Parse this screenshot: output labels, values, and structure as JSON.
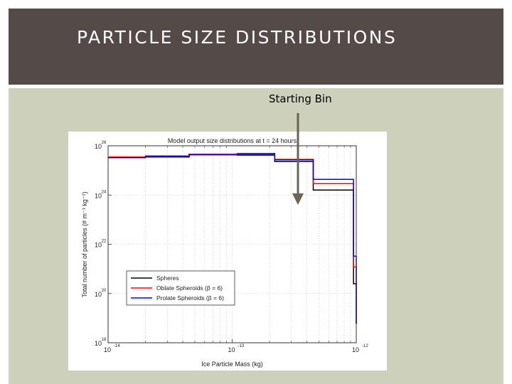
{
  "slide": {
    "title": "PARTICLE SIZE DISTRIBUTIONS",
    "annotation": "Starting Bin",
    "colors": {
      "header": "#544a47",
      "content_bg": "#cdd0bb",
      "arrow": "#6b6455"
    }
  },
  "chart_data": {
    "type": "line",
    "style": "step",
    "title": "Model output size distributions at t = 24 hours",
    "xlabel": "Ice Particle Mass (kg)",
    "ylabel": "Total number of particles (# m⁻¹ kg⁻¹)",
    "xscale": "log",
    "yscale": "log",
    "xlim": [
      1e-14,
      1e-12
    ],
    "ylim": [
      1e+18,
      1e+26
    ],
    "x_ticks": [
      {
        "value": 1e-14,
        "base": "10",
        "exp": "-14"
      },
      {
        "value": 1e-13,
        "base": "10",
        "exp": "-13"
      },
      {
        "value": 1e-12,
        "base": "10",
        "exp": "-12"
      }
    ],
    "y_ticks": [
      {
        "value": 1e+18,
        "base": "10",
        "exp": "18"
      },
      {
        "value": 1e+20,
        "base": "10",
        "exp": "20"
      },
      {
        "value": 1e+22,
        "base": "10",
        "exp": "22"
      },
      {
        "value": 1e+24,
        "base": "10",
        "exp": "24"
      },
      {
        "value": 1e+26,
        "base": "10",
        "exp": "26"
      },
      {
        "value": 1e+28,
        "base": "10",
        "exp": "28"
      }
    ],
    "bin_edges": [
      1e-14,
      2e-14,
      4.5e-14,
      1.1e-13,
      2.2e-13,
      4.5e-13,
      9.5e-13,
      1e-12
    ],
    "series": [
      {
        "name": "Spheres",
        "color": "#000000",
        "values": [
          3.3e+25,
          3.5e+25,
          4.3e+25,
          4.8e+25,
          2.3e+25,
          1.6e+24,
          2.5e+20,
          6e+18
        ]
      },
      {
        "name": "Oblate Spheroids (β = 6)",
        "color": "#ff0000",
        "values": [
          3.5e+25,
          3.9e+25,
          4.6e+25,
          4.1e+25,
          2.8e+25,
          2.9e+24,
          1.2e+21,
          6e+18
        ]
      },
      {
        "name": "Prolate Spheroids (β = 6)",
        "color": "#0000ff",
        "values": [
          3.3e+25,
          3.7e+25,
          4.3e+25,
          4.3e+25,
          2.7e+25,
          4.3e+24,
          3.3e+21,
          6e+18
        ]
      }
    ],
    "starting_bin": 5,
    "grid": true,
    "legend_position": "lower-left"
  }
}
